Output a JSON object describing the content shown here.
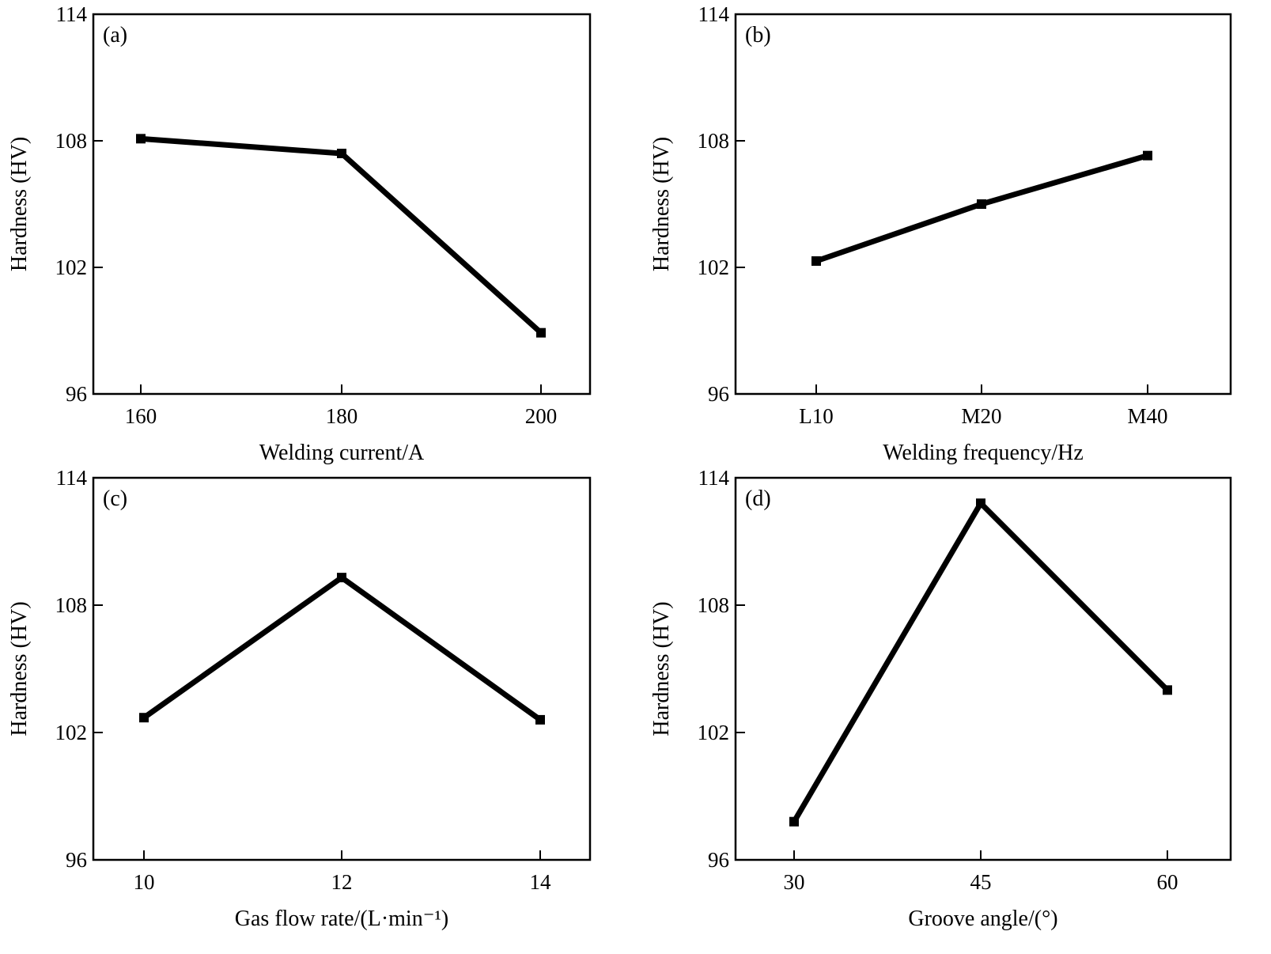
{
  "chart_data": [
    {
      "type": "line",
      "panel_label": "(a)",
      "xlabel": "Welding current/A",
      "ylabel": "Hardness (HV)",
      "categories": [
        "160",
        "180",
        "200"
      ],
      "values": [
        108.1,
        107.4,
        98.9
      ],
      "ylim": [
        96,
        114
      ],
      "yticks": [
        "96",
        "102",
        "108",
        "114"
      ],
      "grid": false
    },
    {
      "type": "line",
      "panel_label": "(b)",
      "xlabel": "Welding frequency/Hz",
      "ylabel": "Hardness (HV)",
      "categories": [
        "L10",
        "M20",
        "M40"
      ],
      "values": [
        102.3,
        105.0,
        107.3
      ],
      "ylim": [
        96,
        114
      ],
      "yticks": [
        "96",
        "102",
        "108",
        "114"
      ],
      "grid": false
    },
    {
      "type": "line",
      "panel_label": "(c)",
      "xlabel": "Gas flow rate/(L·min⁻¹)",
      "ylabel": "Hardness (HV)",
      "categories": [
        "10",
        "12",
        "14"
      ],
      "values": [
        102.7,
        109.3,
        102.6
      ],
      "ylim": [
        96,
        114
      ],
      "yticks": [
        "96",
        "102",
        "108",
        "114"
      ],
      "grid": false
    },
    {
      "type": "line",
      "panel_label": "(d)",
      "xlabel": "Groove angle/(°)",
      "ylabel": "Hardness (HV)",
      "categories": [
        "30",
        "45",
        "60"
      ],
      "values": [
        97.8,
        112.8,
        104.0
      ],
      "ylim": [
        96,
        114
      ],
      "yticks": [
        "96",
        "102",
        "108",
        "114"
      ],
      "grid": false
    }
  ],
  "colors": {
    "line": "#000000",
    "marker": "#000000",
    "frame": "#000000"
  }
}
